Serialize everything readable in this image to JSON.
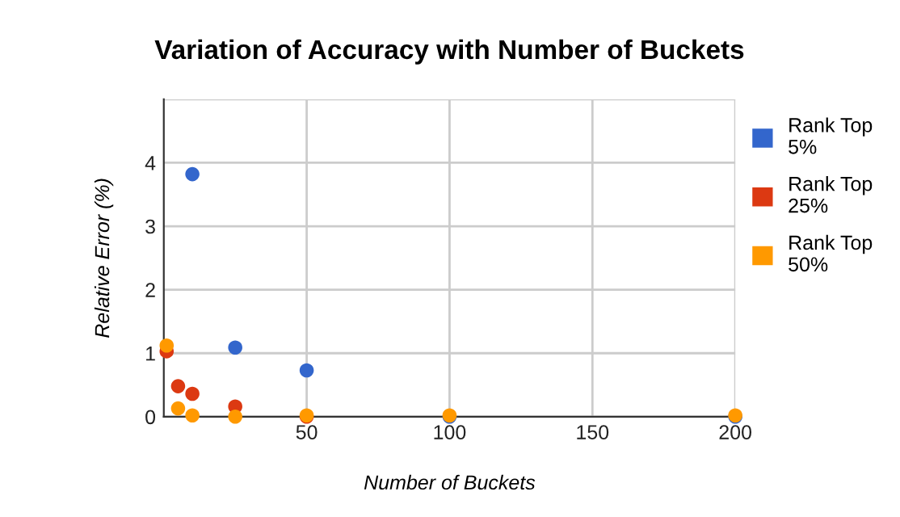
{
  "chart_data": {
    "type": "scatter",
    "title": "Variation of Accuracy with Number of Buckets",
    "xlabel": "Number of Buckets",
    "ylabel": "Relative Error (%)",
    "xlim": [
      0,
      200
    ],
    "xticks": [
      50,
      100,
      150,
      200
    ],
    "ylim": [
      0,
      5
    ],
    "yticks": [
      0,
      1,
      2,
      3,
      4,
      {
        "value": 5,
        "label": null
      }
    ],
    "grid": true,
    "legend": "right",
    "marker": "circle",
    "series": [
      {
        "name": "Rank Top 5%",
        "color": "#3366cc",
        "x": [
          10,
          25,
          50,
          100,
          200
        ],
        "values": [
          3.82,
          1.09,
          0.73,
          0,
          0
        ]
      },
      {
        "name": "Rank Top 25%",
        "color": "#dc3912",
        "x": [
          1,
          5,
          10,
          25,
          50
        ],
        "values": [
          1.03,
          0.48,
          0.36,
          0.16,
          0
        ]
      },
      {
        "name": "Rank Top 50%",
        "color": "#ff9900",
        "x": [
          1,
          5,
          10,
          25,
          50,
          100,
          200
        ],
        "values": [
          1.12,
          0.13,
          0.02,
          0,
          0.02,
          0.02,
          0.02
        ]
      }
    ]
  }
}
